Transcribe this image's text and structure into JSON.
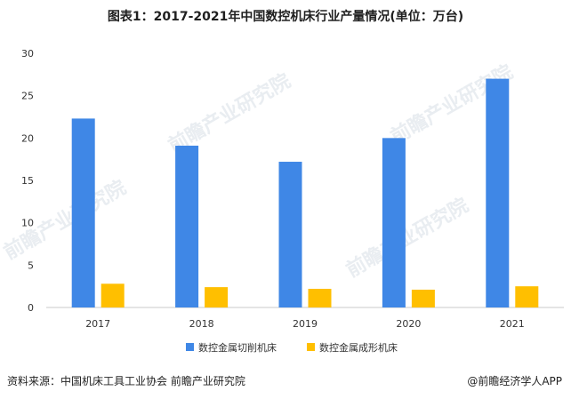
{
  "title": "图表1：2017-2021年中国数控机床行业产量情况(单位：万台)",
  "watermark": "前瞻产业研究院",
  "source": "资料来源：中国机床工具工业协会 前瞻产业研究院",
  "credit": "@前瞻经济学人APP",
  "chart_data": {
    "type": "bar",
    "categories": [
      "2017",
      "2018",
      "2019",
      "2020",
      "2021"
    ],
    "series": [
      {
        "name": "数控金属切削机床",
        "values": [
          22.3,
          19.1,
          17.2,
          20.0,
          27.0
        ],
        "color": "#3f87e6"
      },
      {
        "name": "数控金属成形机床",
        "values": [
          2.8,
          2.4,
          2.2,
          2.1,
          2.5
        ],
        "color": "#ffbf00"
      }
    ],
    "ylim": [
      0,
      30
    ],
    "yticks": [
      0,
      5,
      10,
      15,
      20,
      25,
      30
    ],
    "grid": false,
    "legend": "bottom"
  }
}
